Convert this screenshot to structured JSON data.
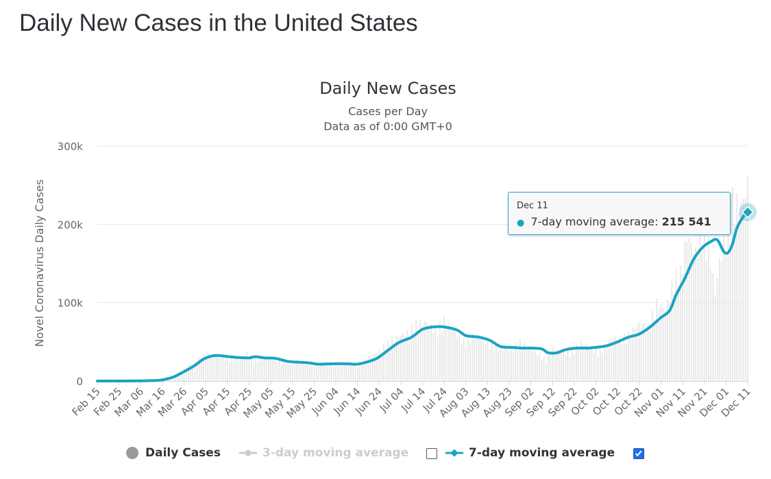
{
  "page": {
    "title": "Daily New Cases in the United States"
  },
  "chart_data": {
    "type": "bar",
    "title": "Daily New Cases",
    "subtitle_lines": [
      "Cases per Day",
      "Data as of 0:00 GMT+0"
    ],
    "ylabel": "Novel Coronavirus Daily Cases",
    "ylim": [
      0,
      300000
    ],
    "y_ticks": [
      0,
      100000,
      200000,
      300000
    ],
    "y_tick_labels": [
      "0",
      "100k",
      "200k",
      "300k"
    ],
    "x_start": "2020-02-15",
    "x_end": "2020-12-11",
    "x_tick_labels": [
      "Feb 15",
      "Feb 25",
      "Mar 06",
      "Mar 16",
      "Mar 26",
      "Apr 05",
      "Apr 15",
      "Apr 25",
      "May 05",
      "May 15",
      "May 25",
      "Jun 04",
      "Jun 14",
      "Jun 24",
      "Jul 04",
      "Jul 14",
      "Jul 24",
      "Aug 03",
      "Aug 13",
      "Aug 23",
      "Sep 02",
      "Sep 12",
      "Sep 22",
      "Oct 02",
      "Oct 12",
      "Oct 22",
      "Nov 01",
      "Nov 11",
      "Nov 21",
      "Dec 01",
      "Dec 11"
    ],
    "x_tick_dates": [
      "2020-02-15",
      "2020-02-25",
      "2020-03-06",
      "2020-03-16",
      "2020-03-26",
      "2020-04-05",
      "2020-04-15",
      "2020-04-25",
      "2020-05-05",
      "2020-05-15",
      "2020-05-25",
      "2020-06-04",
      "2020-06-14",
      "2020-06-24",
      "2020-07-04",
      "2020-07-14",
      "2020-07-24",
      "2020-08-03",
      "2020-08-13",
      "2020-08-23",
      "2020-09-02",
      "2020-09-12",
      "2020-09-22",
      "2020-10-02",
      "2020-10-12",
      "2020-10-22",
      "2020-11-01",
      "2020-11-11",
      "2020-11-21",
      "2020-12-01",
      "2020-12-11"
    ],
    "series": [
      {
        "name": "Daily Cases",
        "kind": "bar",
        "color": "#e6e6e6",
        "visible": true,
        "points": [
          [
            "2020-02-15",
            0
          ],
          [
            "2020-03-01",
            20
          ],
          [
            "2020-03-10",
            300
          ],
          [
            "2020-03-16",
            1000
          ],
          [
            "2020-03-21",
            6000
          ],
          [
            "2020-03-26",
            15000
          ],
          [
            "2020-03-31",
            23000
          ],
          [
            "2020-04-04",
            32000
          ],
          [
            "2020-04-10",
            33000
          ],
          [
            "2020-04-15",
            29000
          ],
          [
            "2020-04-20",
            28000
          ],
          [
            "2020-04-24",
            35000
          ],
          [
            "2020-04-28",
            27000
          ],
          [
            "2020-05-02",
            29000
          ],
          [
            "2020-05-08",
            27000
          ],
          [
            "2020-05-13",
            22000
          ],
          [
            "2020-05-17",
            24000
          ],
          [
            "2020-05-22",
            23000
          ],
          [
            "2020-05-26",
            19000
          ],
          [
            "2020-05-30",
            24000
          ],
          [
            "2020-06-04",
            21000
          ],
          [
            "2020-06-10",
            23000
          ],
          [
            "2020-06-14",
            20000
          ],
          [
            "2020-06-18",
            28000
          ],
          [
            "2020-06-23",
            36000
          ],
          [
            "2020-06-27",
            45000
          ],
          [
            "2020-07-02",
            55000
          ],
          [
            "2020-07-07",
            60000
          ],
          [
            "2020-07-11",
            71000
          ],
          [
            "2020-07-16",
            74000
          ],
          [
            "2020-07-20",
            63000
          ],
          [
            "2020-07-24",
            76000
          ],
          [
            "2020-07-28",
            63000
          ],
          [
            "2020-08-02",
            50000
          ],
          [
            "2020-08-07",
            58000
          ],
          [
            "2020-08-11",
            52000
          ],
          [
            "2020-08-17",
            42000
          ],
          [
            "2020-08-23",
            40000
          ],
          [
            "2020-08-28",
            48000
          ],
          [
            "2020-09-02",
            40000
          ],
          [
            "2020-09-06",
            33000
          ],
          [
            "2020-09-09",
            26000
          ],
          [
            "2020-09-12",
            40000
          ],
          [
            "2020-09-16",
            38000
          ],
          [
            "2020-09-20",
            35000
          ],
          [
            "2020-09-25",
            48000
          ],
          [
            "2020-09-30",
            42000
          ],
          [
            "2020-10-04",
            36000
          ],
          [
            "2020-10-09",
            55000
          ],
          [
            "2020-10-13",
            52000
          ],
          [
            "2020-10-17",
            58000
          ],
          [
            "2020-10-22",
            73000
          ],
          [
            "2020-10-26",
            66000
          ],
          [
            "2020-10-30",
            97000
          ],
          [
            "2020-11-03",
            90000
          ],
          [
            "2020-11-07",
            127000
          ],
          [
            "2020-11-10",
            135000
          ],
          [
            "2020-11-13",
            182000
          ],
          [
            "2020-11-17",
            160000
          ],
          [
            "2020-11-20",
            195000
          ],
          [
            "2020-11-23",
            170000
          ],
          [
            "2020-11-26",
            110000
          ],
          [
            "2020-11-28",
            150000
          ],
          [
            "2020-12-01",
            180000
          ],
          [
            "2020-12-04",
            225000
          ],
          [
            "2020-12-08",
            220000
          ],
          [
            "2020-12-11",
            245000
          ]
        ]
      },
      {
        "name": "3-day moving average",
        "kind": "line",
        "color": "#cccccc",
        "visible": false,
        "points": []
      },
      {
        "name": "7-day moving average",
        "kind": "line",
        "color": "#1aa3c3",
        "visible": true,
        "points": [
          [
            "2020-02-15",
            0
          ],
          [
            "2020-03-05",
            100
          ],
          [
            "2020-03-12",
            500
          ],
          [
            "2020-03-16",
            1500
          ],
          [
            "2020-03-21",
            5000
          ],
          [
            "2020-03-26",
            12000
          ],
          [
            "2020-03-31",
            20000
          ],
          [
            "2020-04-04",
            28000
          ],
          [
            "2020-04-08",
            32000
          ],
          [
            "2020-04-11",
            32500
          ],
          [
            "2020-04-16",
            31000
          ],
          [
            "2020-04-20",
            30000
          ],
          [
            "2020-04-25",
            29500
          ],
          [
            "2020-04-28",
            31000
          ],
          [
            "2020-05-02",
            29500
          ],
          [
            "2020-05-07",
            29000
          ],
          [
            "2020-05-13",
            25000
          ],
          [
            "2020-05-18",
            24000
          ],
          [
            "2020-05-23",
            23000
          ],
          [
            "2020-05-27",
            21500
          ],
          [
            "2020-06-03",
            22000
          ],
          [
            "2020-06-09",
            22000
          ],
          [
            "2020-06-14",
            21500
          ],
          [
            "2020-06-18",
            24000
          ],
          [
            "2020-06-23",
            29000
          ],
          [
            "2020-06-28",
            39000
          ],
          [
            "2020-07-03",
            49000
          ],
          [
            "2020-07-09",
            56000
          ],
          [
            "2020-07-14",
            66000
          ],
          [
            "2020-07-19",
            69000
          ],
          [
            "2020-07-24",
            69000
          ],
          [
            "2020-07-30",
            65000
          ],
          [
            "2020-08-03",
            58000
          ],
          [
            "2020-08-09",
            56000
          ],
          [
            "2020-08-14",
            52000
          ],
          [
            "2020-08-19",
            44000
          ],
          [
            "2020-08-24",
            43000
          ],
          [
            "2020-08-29",
            42000
          ],
          [
            "2020-09-03",
            42000
          ],
          [
            "2020-09-07",
            41000
          ],
          [
            "2020-09-10",
            36000
          ],
          [
            "2020-09-14",
            36000
          ],
          [
            "2020-09-18",
            40000
          ],
          [
            "2020-09-23",
            42000
          ],
          [
            "2020-09-28",
            42000
          ],
          [
            "2020-10-02",
            43000
          ],
          [
            "2020-10-07",
            45000
          ],
          [
            "2020-10-12",
            50000
          ],
          [
            "2020-10-17",
            56000
          ],
          [
            "2020-10-22",
            60000
          ],
          [
            "2020-10-27",
            69000
          ],
          [
            "2020-11-01",
            81000
          ],
          [
            "2020-11-05",
            90000
          ],
          [
            "2020-11-08",
            110000
          ],
          [
            "2020-11-12",
            131000
          ],
          [
            "2020-11-16",
            155000
          ],
          [
            "2020-11-20",
            170000
          ],
          [
            "2020-11-24",
            178000
          ],
          [
            "2020-11-27",
            180000
          ],
          [
            "2020-11-30",
            165000
          ],
          [
            "2020-12-02",
            164000
          ],
          [
            "2020-12-04",
            175000
          ],
          [
            "2020-12-06",
            195000
          ],
          [
            "2020-12-09",
            210000
          ],
          [
            "2020-12-11",
            215541
          ]
        ]
      }
    ],
    "legend_position": "bottom-center",
    "grid": true,
    "tooltip": {
      "date": "Dec 11",
      "series": "7-day moving average",
      "label": "7-day moving average:",
      "value": "215 541"
    }
  },
  "legend": {
    "items": [
      {
        "label": "Daily Cases",
        "checked": null
      },
      {
        "label": "3-day moving average",
        "checked": false
      },
      {
        "label": "7-day moving average",
        "checked": true
      }
    ]
  },
  "colors": {
    "accent": "#1aa3c3",
    "bars": "#e6e6e6",
    "grid": "#e6e6e6",
    "disabled": "#cccccc"
  }
}
